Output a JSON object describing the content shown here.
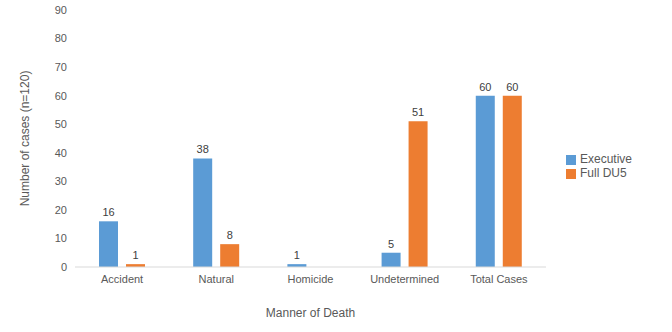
{
  "chart_data": {
    "type": "bar",
    "x_label": "Manner of Death",
    "y_label": "Number of cases (n=120)",
    "categories": [
      "Accident",
      "Natural",
      "Homicide",
      "Undetermined",
      "Total Cases"
    ],
    "series": [
      {
        "name": "Executive",
        "color": "#5b9bd5",
        "values": [
          16,
          38,
          1,
          5,
          60
        ]
      },
      {
        "name": "Full DU5",
        "color": "#ed7d31",
        "values": [
          1,
          8,
          null,
          51,
          60
        ]
      }
    ],
    "ylim": [
      0,
      90
    ],
    "yticks": [
      0,
      10,
      20,
      30,
      40,
      50,
      60,
      70,
      80,
      90
    ],
    "grid": false,
    "legend": "right",
    "data_labels": true
  }
}
